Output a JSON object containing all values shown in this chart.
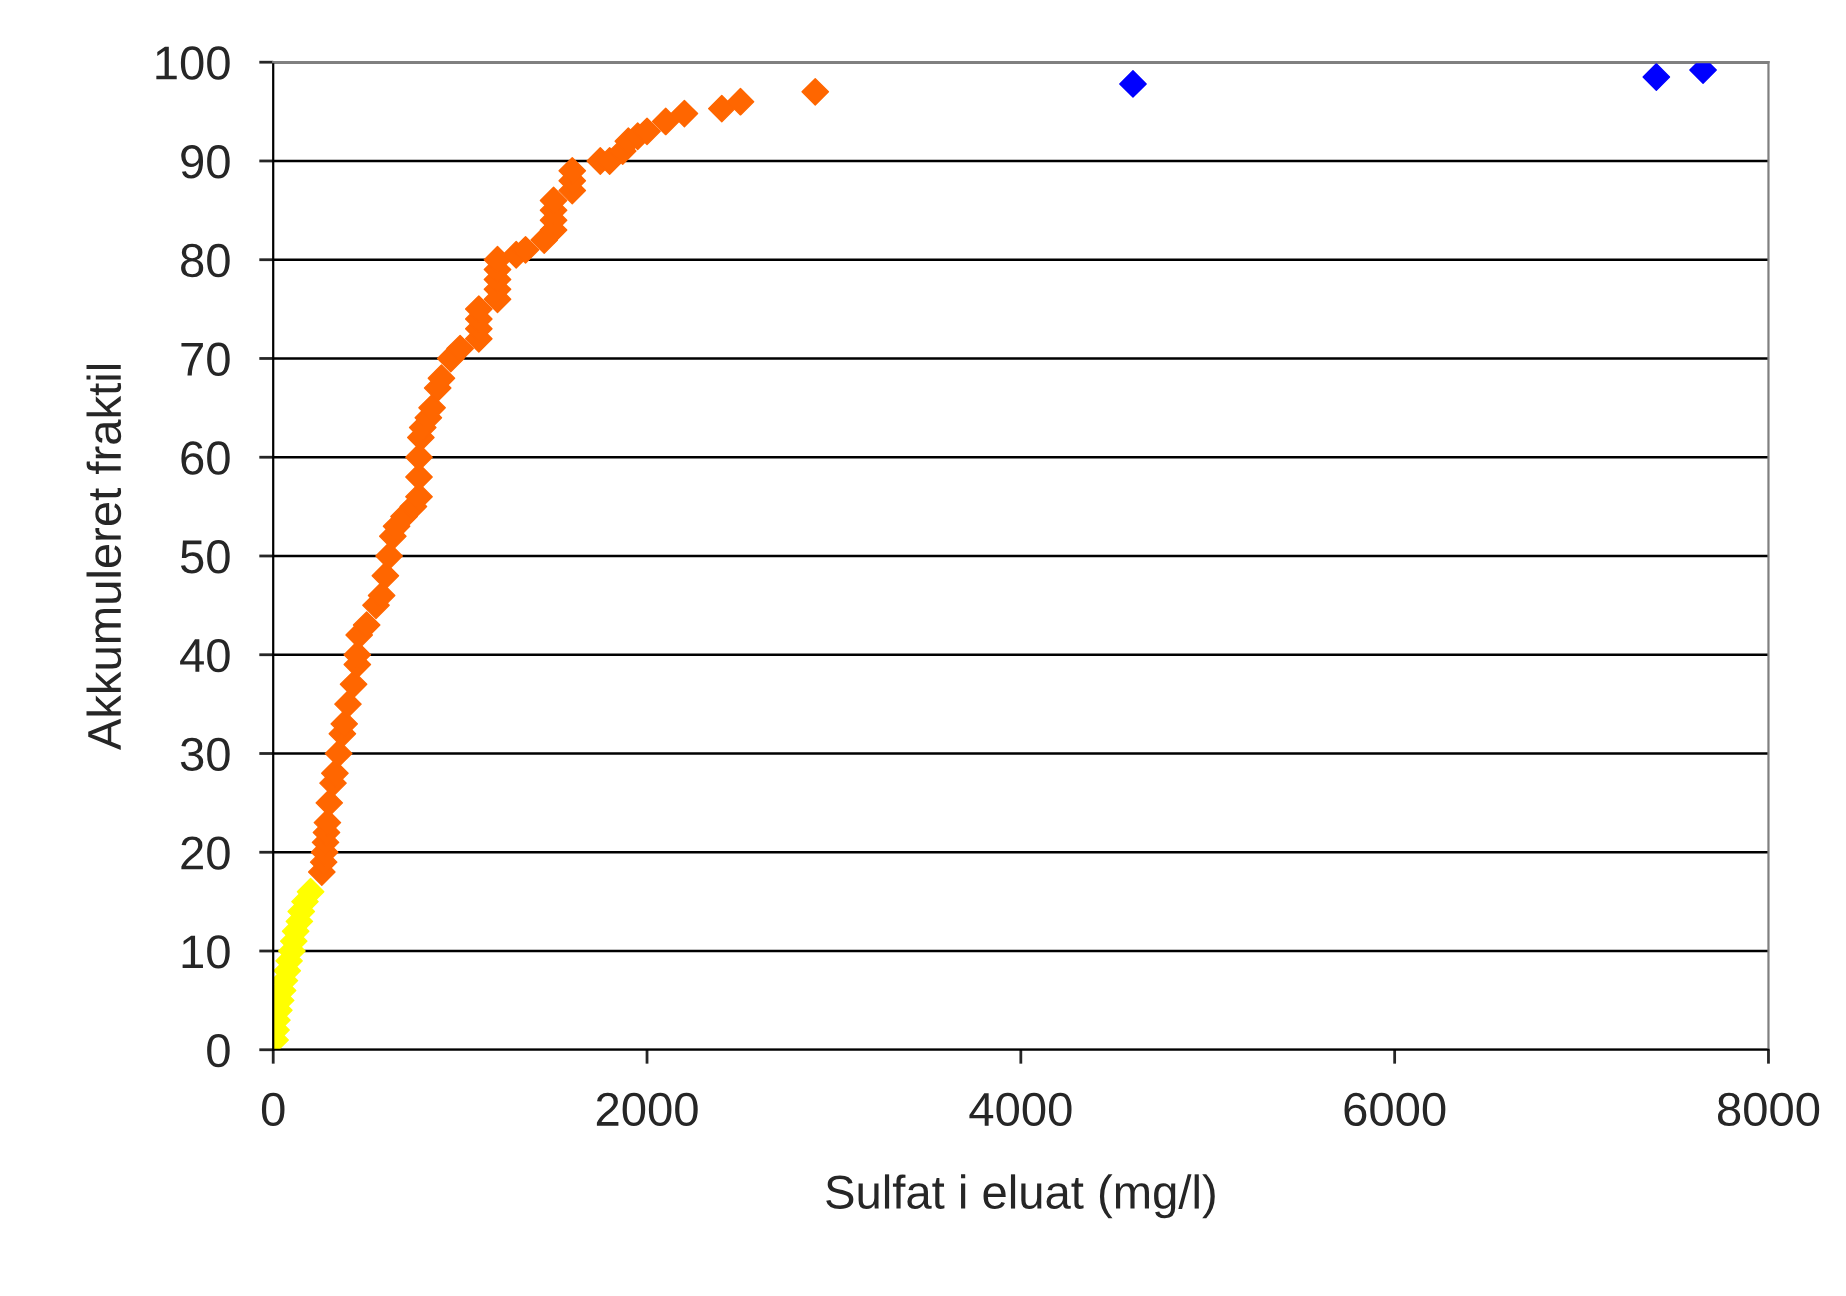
{
  "chart_data": {
    "type": "scatter",
    "xlabel": "Sulfat i eluat (mg/l)",
    "ylabel": "Akkumuleret fraktil",
    "xlim": [
      0,
      8000
    ],
    "xticks": [
      0,
      2000,
      4000,
      6000,
      8000
    ],
    "ylim": [
      0,
      100
    ],
    "yticks": [
      0,
      10,
      20,
      30,
      40,
      50,
      60,
      70,
      80,
      90,
      100
    ],
    "grid": "y",
    "marker": "diamond",
    "legend": false,
    "series": [
      {
        "color": "#ffff00",
        "x": [
          10,
          15,
          20,
          30,
          40,
          50,
          60,
          75,
          85,
          100,
          110,
          120,
          140,
          150,
          170,
          200
        ],
        "values": [
          1,
          2,
          3,
          4,
          5,
          6,
          7,
          8,
          9,
          10,
          11,
          12,
          13,
          14,
          15,
          16
        ]
      },
      {
        "color": "#ff6600",
        "x": [
          260,
          270,
          275,
          280,
          285,
          290,
          300,
          320,
          330,
          350,
          370,
          380,
          400,
          430,
          450,
          450,
          460,
          500,
          550,
          580,
          600,
          620,
          640,
          660,
          700,
          750,
          780,
          780,
          780,
          790,
          800,
          830,
          850,
          880,
          900,
          950,
          1000,
          1100,
          1100,
          1100,
          1100,
          1200,
          1200,
          1200,
          1200,
          1200,
          1300,
          1350,
          1450,
          1500,
          1500,
          1500,
          1500,
          1600,
          1600,
          1600,
          1750,
          1800,
          1870,
          1900,
          1950,
          2000,
          2100,
          2200,
          2400,
          2500,
          2900
        ],
        "values": [
          18,
          19,
          20,
          21,
          22,
          23,
          25,
          27,
          28,
          30,
          32,
          33,
          35,
          37,
          39,
          40,
          42,
          43,
          45,
          46,
          48,
          50,
          52,
          53,
          54,
          55,
          56,
          58,
          60,
          62,
          63,
          64,
          65,
          67,
          68,
          70,
          71,
          72,
          73,
          74,
          75,
          76,
          77,
          78,
          79,
          80,
          80.5,
          81,
          82,
          83,
          84,
          85,
          86,
          87,
          88,
          89,
          90,
          90,
          91,
          92,
          92.5,
          93,
          94,
          94.8,
          95.3,
          96,
          97
        ]
      },
      {
        "color": "#0000ff",
        "x": [
          4600,
          7400,
          7650
        ],
        "values": [
          97.8,
          98.5,
          99.2
        ]
      }
    ]
  }
}
